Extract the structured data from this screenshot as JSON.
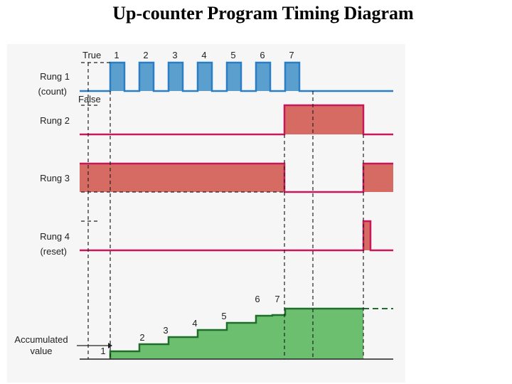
{
  "title": "Up-counter Program Timing Diagram",
  "colors": {
    "rung1": "#2b7ec4",
    "rung1_fill": "#5b9fcf",
    "rung_magenta": "#c8175a",
    "rung_fill": "#d56b62",
    "accum": "#1f6e2a",
    "accum_fill": "#6cbf6e"
  },
  "signal_labels": {
    "true": "True",
    "false": "False"
  },
  "rungs": [
    {
      "line1": "Rung 1",
      "line2": "(count)"
    },
    {
      "line1": "Rung 2",
      "line2": ""
    },
    {
      "line1": "Rung 3",
      "line2": ""
    },
    {
      "line1": "Rung 4",
      "line2": "(reset)"
    }
  ],
  "accumulated": {
    "line1": "Accumulated",
    "line2": "value"
  },
  "pulse_numbers": [
    "1",
    "2",
    "3",
    "4",
    "5",
    "6",
    "7"
  ],
  "step_numbers": [
    "1",
    "2",
    "3",
    "4",
    "5",
    "6",
    "7"
  ]
}
